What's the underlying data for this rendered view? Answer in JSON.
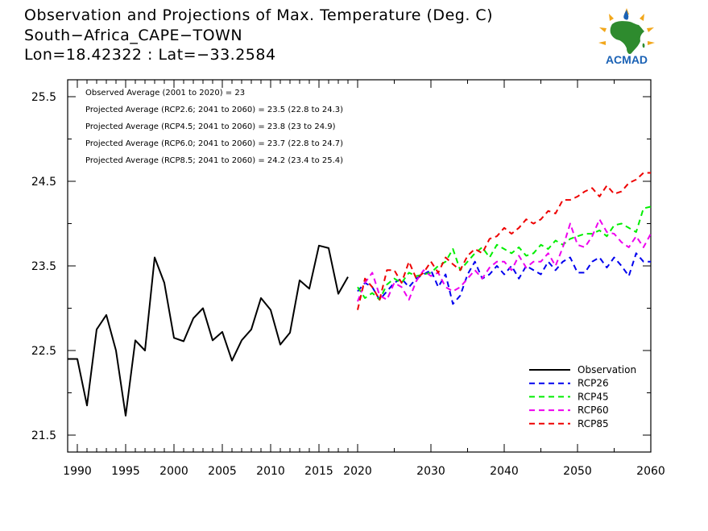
{
  "header": {
    "title_line1": "Observation and Projections of Max. Temperature (Deg. C)",
    "title_line2": "South−Africa_CAPE−TOWN",
    "title_line3": "Lon=18.42322 : Lat=−33.2584"
  },
  "logo": {
    "text": "ACMAD"
  },
  "chart_data": {
    "type": "line",
    "ylim": [
      21.3,
      25.7
    ],
    "yticks": [
      21.5,
      22.5,
      23.5,
      24.5,
      25.5
    ],
    "ytick_labels": [
      "21.5",
      "22.5",
      "23.5",
      "24.5",
      "25.5"
    ],
    "xtick_labels": [
      "1990",
      "1995",
      "2000",
      "2005",
      "2010",
      "2015",
      "2020",
      "2030",
      "2040",
      "2050",
      "2060"
    ],
    "annotations": [
      "Observed Average (2001 to 2020) = 23",
      "Projected Average (RCP2.6; 2041 to 2060) = 23.5 (22.8 to 24.3)",
      "Projected Average (RCP4.5; 2041 to 2060) = 23.8 (23 to 24.9)",
      "Projected Average (RCP6.0; 2041 to 2060) = 23.7 (22.8 to 24.7)",
      "Projected Average (RCP8.5; 2041 to 2060) = 24.2 (23.4 to 25.4)"
    ],
    "legend_position": "bottom-right",
    "series": [
      {
        "name": "Observation",
        "color": "#000000",
        "dashed": false,
        "x": [
          1989,
          1990,
          1991,
          1992,
          1993,
          1994,
          1995,
          1996,
          1997,
          1998,
          1999,
          2000,
          2001,
          2002,
          2003,
          2004,
          2005,
          2006,
          2007,
          2008,
          2009,
          2010,
          2011,
          2012,
          2013,
          2014,
          2015,
          2016,
          2017,
          2018,
          2019
        ],
        "y": [
          22.4,
          22.4,
          21.85,
          22.75,
          22.92,
          22.5,
          21.73,
          22.62,
          22.5,
          23.6,
          23.3,
          22.65,
          22.61,
          22.88,
          23.0,
          22.62,
          22.72,
          22.38,
          22.62,
          22.75,
          23.12,
          22.98,
          22.57,
          22.71,
          23.33,
          23.23,
          23.74,
          23.71,
          23.17,
          23.37,
          null
        ]
      },
      {
        "name": "RCP26",
        "color": "#0000ee",
        "dashed": true,
        "x": [
          2020,
          2021,
          2022,
          2023,
          2024,
          2025,
          2026,
          2027,
          2028,
          2029,
          2030,
          2031,
          2032,
          2033,
          2034,
          2035,
          2036,
          2037,
          2038,
          2039,
          2040,
          2041,
          2042,
          2043,
          2044,
          2045,
          2046,
          2047,
          2048,
          2049,
          2050,
          2051,
          2052,
          2053,
          2054,
          2055,
          2056,
          2057,
          2058,
          2059,
          2060
        ],
        "y": [
          23.2,
          23.3,
          23.25,
          23.1,
          23.2,
          23.3,
          23.35,
          23.25,
          23.35,
          23.4,
          23.45,
          23.25,
          23.4,
          23.05,
          23.15,
          23.4,
          23.55,
          23.35,
          23.4,
          23.5,
          23.4,
          23.5,
          23.35,
          23.5,
          23.45,
          23.4,
          23.55,
          23.45,
          23.55,
          23.6,
          23.42,
          23.42,
          23.55,
          23.6,
          23.48,
          23.6,
          23.5,
          23.38,
          23.65,
          23.55,
          23.55
        ]
      },
      {
        "name": "RCP45",
        "color": "#00ee00",
        "dashed": true,
        "x": [
          2020,
          2021,
          2022,
          2023,
          2024,
          2025,
          2026,
          2027,
          2028,
          2029,
          2030,
          2031,
          2032,
          2033,
          2034,
          2035,
          2036,
          2037,
          2038,
          2039,
          2040,
          2041,
          2042,
          2043,
          2044,
          2045,
          2046,
          2047,
          2048,
          2049,
          2050,
          2051,
          2052,
          2053,
          2054,
          2055,
          2056,
          2057,
          2058,
          2059,
          2060
        ],
        "y": [
          23.25,
          23.12,
          23.18,
          23.1,
          23.28,
          23.35,
          23.3,
          23.42,
          23.38,
          23.4,
          23.42,
          23.5,
          23.55,
          23.7,
          23.45,
          23.55,
          23.65,
          23.72,
          23.6,
          23.75,
          23.7,
          23.65,
          23.72,
          23.62,
          23.65,
          23.75,
          23.7,
          23.8,
          23.75,
          23.82,
          23.85,
          23.88,
          23.88,
          23.92,
          23.85,
          23.98,
          24.0,
          23.95,
          23.9,
          24.18,
          24.2
        ]
      },
      {
        "name": "RCP60",
        "color": "#ee00ee",
        "dashed": true,
        "x": [
          2020,
          2021,
          2022,
          2023,
          2024,
          2025,
          2026,
          2027,
          2028,
          2029,
          2030,
          2031,
          2032,
          2033,
          2034,
          2035,
          2036,
          2037,
          2038,
          2039,
          2040,
          2041,
          2042,
          2043,
          2044,
          2045,
          2046,
          2047,
          2048,
          2049,
          2050,
          2051,
          2052,
          2053,
          2054,
          2055,
          2056,
          2057,
          2058,
          2059,
          2060
        ],
        "y": [
          23.08,
          23.3,
          23.42,
          23.15,
          23.1,
          23.3,
          23.25,
          23.1,
          23.32,
          23.45,
          23.38,
          23.42,
          23.25,
          23.2,
          23.25,
          23.35,
          23.45,
          23.35,
          23.48,
          23.55,
          23.55,
          23.45,
          23.62,
          23.48,
          23.55,
          23.55,
          23.65,
          23.5,
          23.72,
          24.0,
          23.75,
          23.72,
          23.85,
          24.05,
          23.9,
          23.88,
          23.78,
          23.72,
          23.85,
          23.72,
          23.88
        ]
      },
      {
        "name": "RCP85",
        "color": "#ee0000",
        "dashed": true,
        "x": [
          2020,
          2021,
          2022,
          2023,
          2024,
          2025,
          2026,
          2027,
          2028,
          2029,
          2030,
          2031,
          2032,
          2033,
          2034,
          2035,
          2036,
          2037,
          2038,
          2039,
          2040,
          2041,
          2042,
          2043,
          2044,
          2045,
          2046,
          2047,
          2048,
          2049,
          2050,
          2051,
          2052,
          2053,
          2054,
          2055,
          2056,
          2057,
          2058,
          2059,
          2060
        ],
        "y": [
          22.98,
          23.35,
          23.25,
          23.1,
          23.45,
          23.45,
          23.3,
          23.55,
          23.35,
          23.42,
          23.55,
          23.42,
          23.6,
          23.52,
          23.45,
          23.62,
          23.7,
          23.65,
          23.82,
          23.85,
          23.95,
          23.88,
          23.95,
          24.05,
          24.0,
          24.05,
          24.15,
          24.12,
          24.28,
          24.28,
          24.32,
          24.38,
          24.42,
          24.32,
          24.45,
          24.35,
          24.38,
          24.48,
          24.52,
          24.6,
          24.6
        ]
      }
    ]
  }
}
